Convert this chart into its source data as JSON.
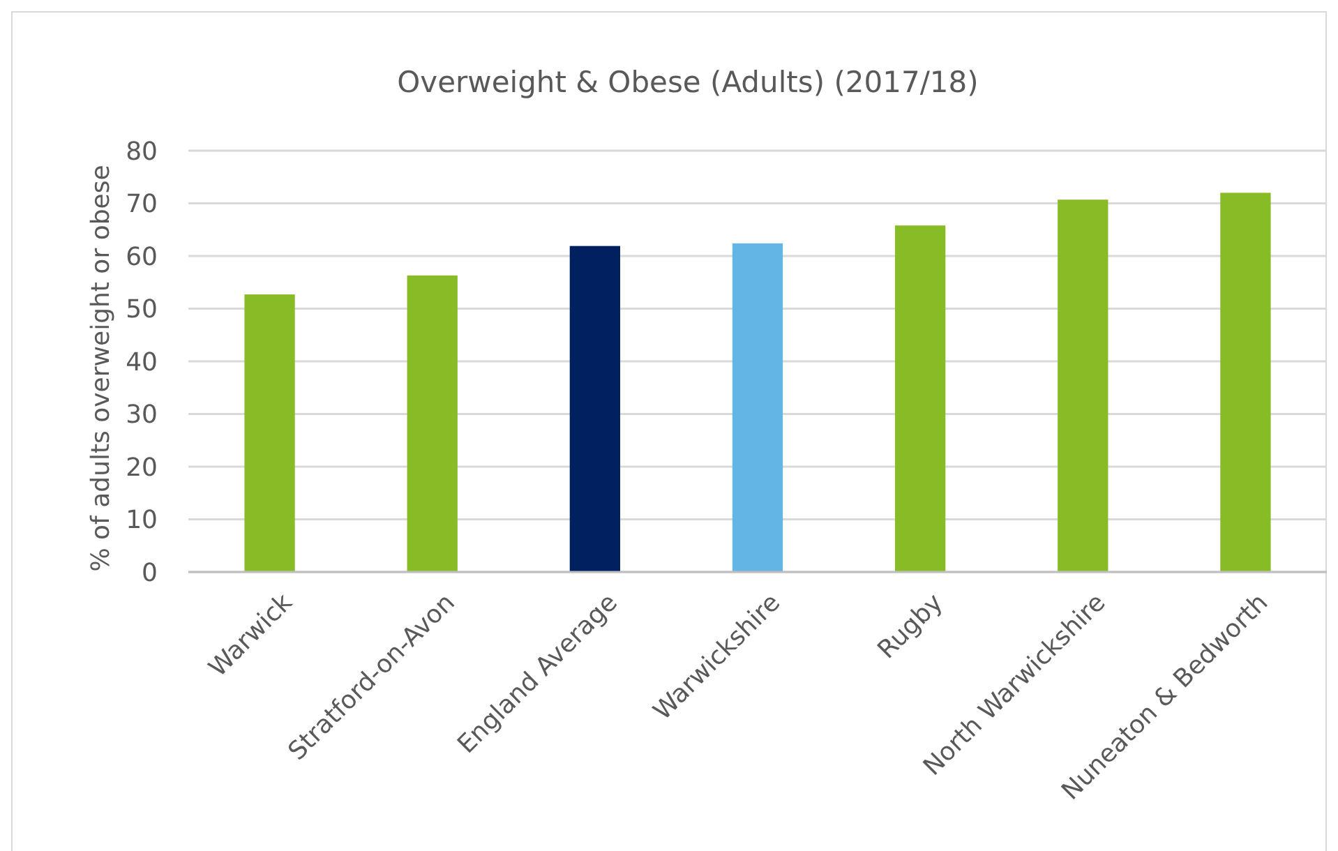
{
  "chart_data": {
    "type": "bar",
    "title": "Overweight & Obese (Adults) (2017/18)",
    "ylabel": "% of adults overweight or obese",
    "categories": [
      "Warwick",
      "Stratford-on-Avon",
      "England Average",
      "Warwickshire",
      "Rugby",
      "North Warwickshire",
      "Nuneaton & Bedworth"
    ],
    "values": [
      52.7,
      56.3,
      61.9,
      62.4,
      65.8,
      70.7,
      72.0
    ],
    "colors": [
      "#88bc27",
      "#88bc27",
      "#002060",
      "#62b5e5",
      "#88bc27",
      "#88bc27",
      "#88bc27"
    ],
    "ylim": [
      0,
      80
    ],
    "yticks": [
      0,
      10,
      20,
      30,
      40,
      50,
      60,
      70,
      80
    ],
    "grid": "y"
  }
}
